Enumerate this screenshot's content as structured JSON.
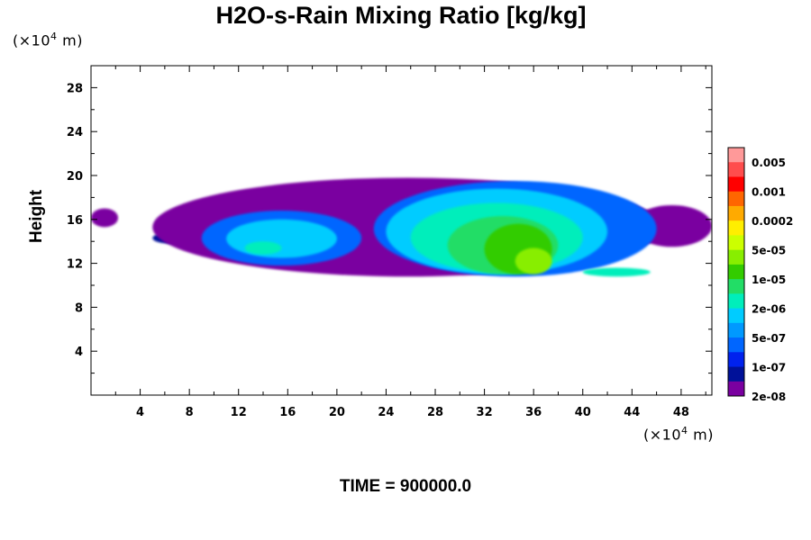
{
  "chart_data": {
    "type": "heatmap",
    "title": "H2O-s-Rain Mixing Ratio [kg/kg]",
    "ylabel": "Height",
    "x_unit": [
      "(×10",
      "4",
      " m)"
    ],
    "y_unit": [
      "(×10",
      "4",
      " m)"
    ],
    "footer": "TIME = 900000.0",
    "xlim": [
      0,
      50.5
    ],
    "ylim": [
      0,
      30
    ],
    "x_ticks": [
      4,
      8,
      12,
      16,
      20,
      24,
      28,
      32,
      36,
      40,
      44,
      48
    ],
    "y_ticks": [
      4,
      8,
      12,
      16,
      20,
      24,
      28
    ],
    "legend": {
      "labels": [
        "0.005",
        "0.001",
        "0.0002",
        "5e-05",
        "1e-05",
        "2e-06",
        "5e-07",
        "1e-07",
        "2e-08"
      ],
      "colors": [
        "#ff9999",
        "#ff4d4d",
        "#ff0000",
        "#ff6600",
        "#ffaa00",
        "#ffee00",
        "#ccff00",
        "#88ee00",
        "#33cc00",
        "#22dd66",
        "#00eebb",
        "#00ccff",
        "#0099ff",
        "#0066ff",
        "#0022ee",
        "#001199",
        "#7a00a0"
      ]
    },
    "regions": [
      {
        "level": 0,
        "x": [
          0,
          2.2
        ],
        "y": [
          15.3,
          17.0
        ]
      },
      {
        "level": 1,
        "x": [
          5.0,
          8.0
        ],
        "y": [
          13.8,
          14.8
        ]
      },
      {
        "level": 0,
        "x": [
          5.0,
          46.5
        ],
        "y": [
          10.8,
          19.8
        ]
      },
      {
        "level": 0,
        "x": [
          44.0,
          50.5
        ],
        "y": [
          13.5,
          17.3
        ]
      },
      {
        "level": 3,
        "x": [
          9.0,
          22.0
        ],
        "y": [
          11.8,
          16.8
        ]
      },
      {
        "level": 3,
        "x": [
          23.0,
          46.0
        ],
        "y": [
          10.8,
          19.5
        ]
      },
      {
        "level": 5,
        "x": [
          11.0,
          20.0
        ],
        "y": [
          12.5,
          16.0
        ]
      },
      {
        "level": 5,
        "x": [
          24.0,
          42.0
        ],
        "y": [
          11.0,
          18.8
        ]
      },
      {
        "level": 6,
        "x": [
          12.5,
          15.5
        ],
        "y": [
          12.8,
          14.0
        ]
      },
      {
        "level": 6,
        "x": [
          26.0,
          40.0
        ],
        "y": [
          11.2,
          17.5
        ]
      },
      {
        "level": 7,
        "x": [
          29.0,
          38.0
        ],
        "y": [
          11.0,
          16.3
        ]
      },
      {
        "level": 8,
        "x": [
          32.0,
          37.5
        ],
        "y": [
          11.0,
          15.6
        ]
      },
      {
        "level": 9,
        "x": [
          34.5,
          37.5
        ],
        "y": [
          11.0,
          13.4
        ]
      },
      {
        "level": 6,
        "x": [
          40.0,
          45.5
        ],
        "y": [
          10.8,
          11.6
        ]
      }
    ]
  }
}
